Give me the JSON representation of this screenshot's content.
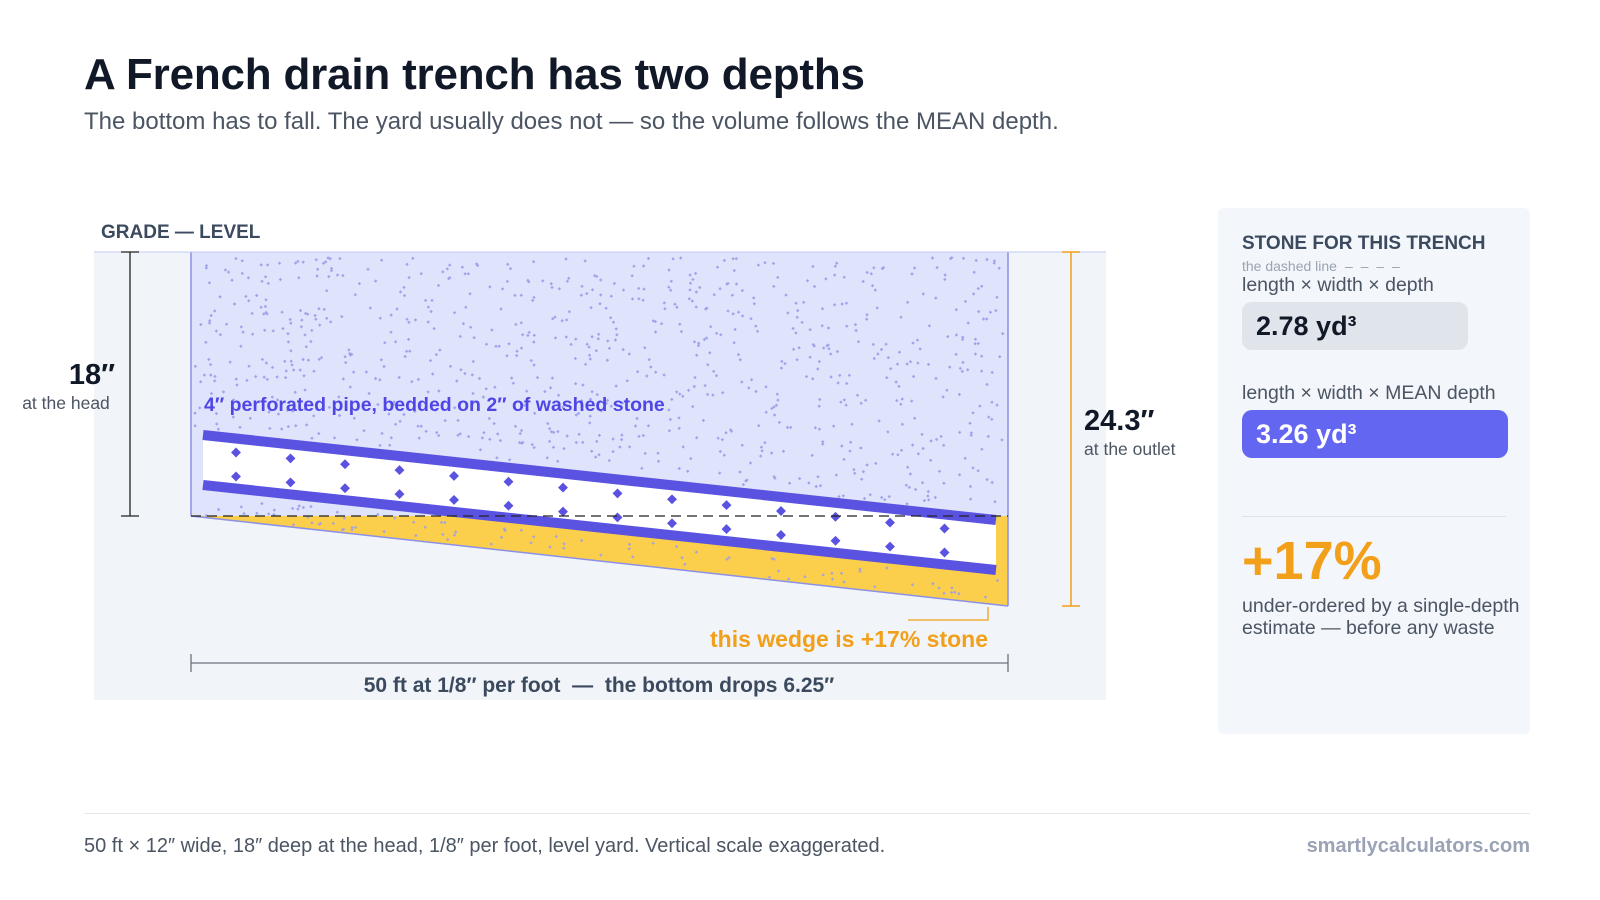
{
  "header": {
    "title": "A French drain trench has two depths",
    "subtitle": "The bottom has to fall. The yard usually does not — so the volume follows the MEAN depth."
  },
  "diagram": {
    "grade_label": "GRADE — LEVEL",
    "head_depth": "18″",
    "head_caption": "at the head",
    "outlet_depth": "24.3″",
    "outlet_caption": "at the outlet",
    "pipe_label": "4″ perforated pipe, bedded on 2″ of washed stone",
    "wedge_label": "this wedge is +17% stone",
    "length_label": "50 ft at 1/8″ per foot  —  the bottom drops 6.25″",
    "colors": {
      "stone_fill": "#dfe3fb",
      "stone_edge": "#8b90e8",
      "pipe": "#5a52e0",
      "wedge": "#fbcf4c",
      "accent": "#f29f19",
      "background": "#f1f4f8"
    }
  },
  "panel": {
    "title": "STONE FOR THIS TRENCH",
    "note": "the dashed line",
    "note_dash": "– – – –",
    "formula_depth": "length × width × depth",
    "value_depth": "2.78 yd³",
    "formula_mean": "length × width × MEAN depth",
    "value_mean": "3.26 yd³",
    "delta": "+17%",
    "delta_caption": "under-ordered by a single-depth estimate — before any waste"
  },
  "footer": {
    "note": "50 ft × 12″ wide, 18″ deep at the head, 1/8″ per foot, level yard. Vertical scale exaggerated.",
    "brand": "smartlycalculators.com"
  }
}
